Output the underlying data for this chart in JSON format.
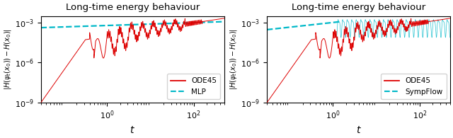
{
  "title": "Long-time energy behaviour",
  "xlabel": "$t$",
  "ylabel": "$|H(\\psi_t(x_0)) - H(x_0)|$",
  "xlim": [
    0.03,
    500
  ],
  "ylim": [
    1e-09,
    0.003
  ],
  "ode45_color": "#dd0000",
  "cyan_color": "#00b8c8",
  "legend1_labels": [
    "ODE45",
    "MLP"
  ],
  "legend2_labels": [
    "ODE45",
    "SympFlow"
  ],
  "background": "#ffffff"
}
